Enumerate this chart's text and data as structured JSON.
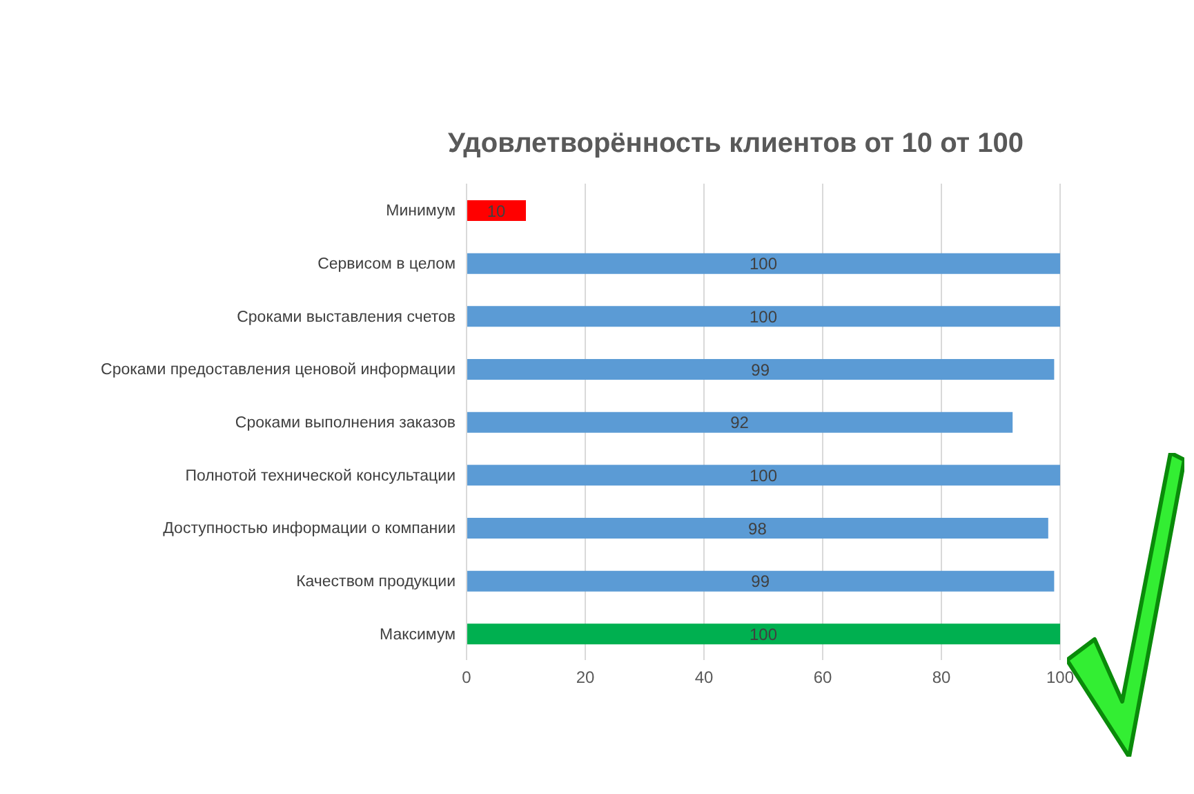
{
  "chart_data": {
    "type": "bar",
    "orientation": "horizontal",
    "title": "Удовлетворённость клиентов от 10 от 100",
    "categories": [
      "Минимум",
      "Сервисом в целом",
      "Сроками выставления счетов",
      "Сроками предоставления ценовой информации",
      "Сроками выполнения заказов",
      "Полнотой технической консультации",
      "Доступностью информации о компании",
      "Качеством продукции",
      "Максимум"
    ],
    "values": [
      10,
      100,
      100,
      99,
      92,
      100,
      98,
      99,
      100
    ],
    "colors": [
      "#ff0000",
      "#5b9bd5",
      "#5b9bd5",
      "#5b9bd5",
      "#5b9bd5",
      "#5b9bd5",
      "#5b9bd5",
      "#5b9bd5",
      "#00b050"
    ],
    "xlim": [
      0,
      100
    ],
    "xticks": [
      0,
      20,
      40,
      60,
      80,
      100
    ],
    "grid": "x",
    "data_labels": true
  }
}
